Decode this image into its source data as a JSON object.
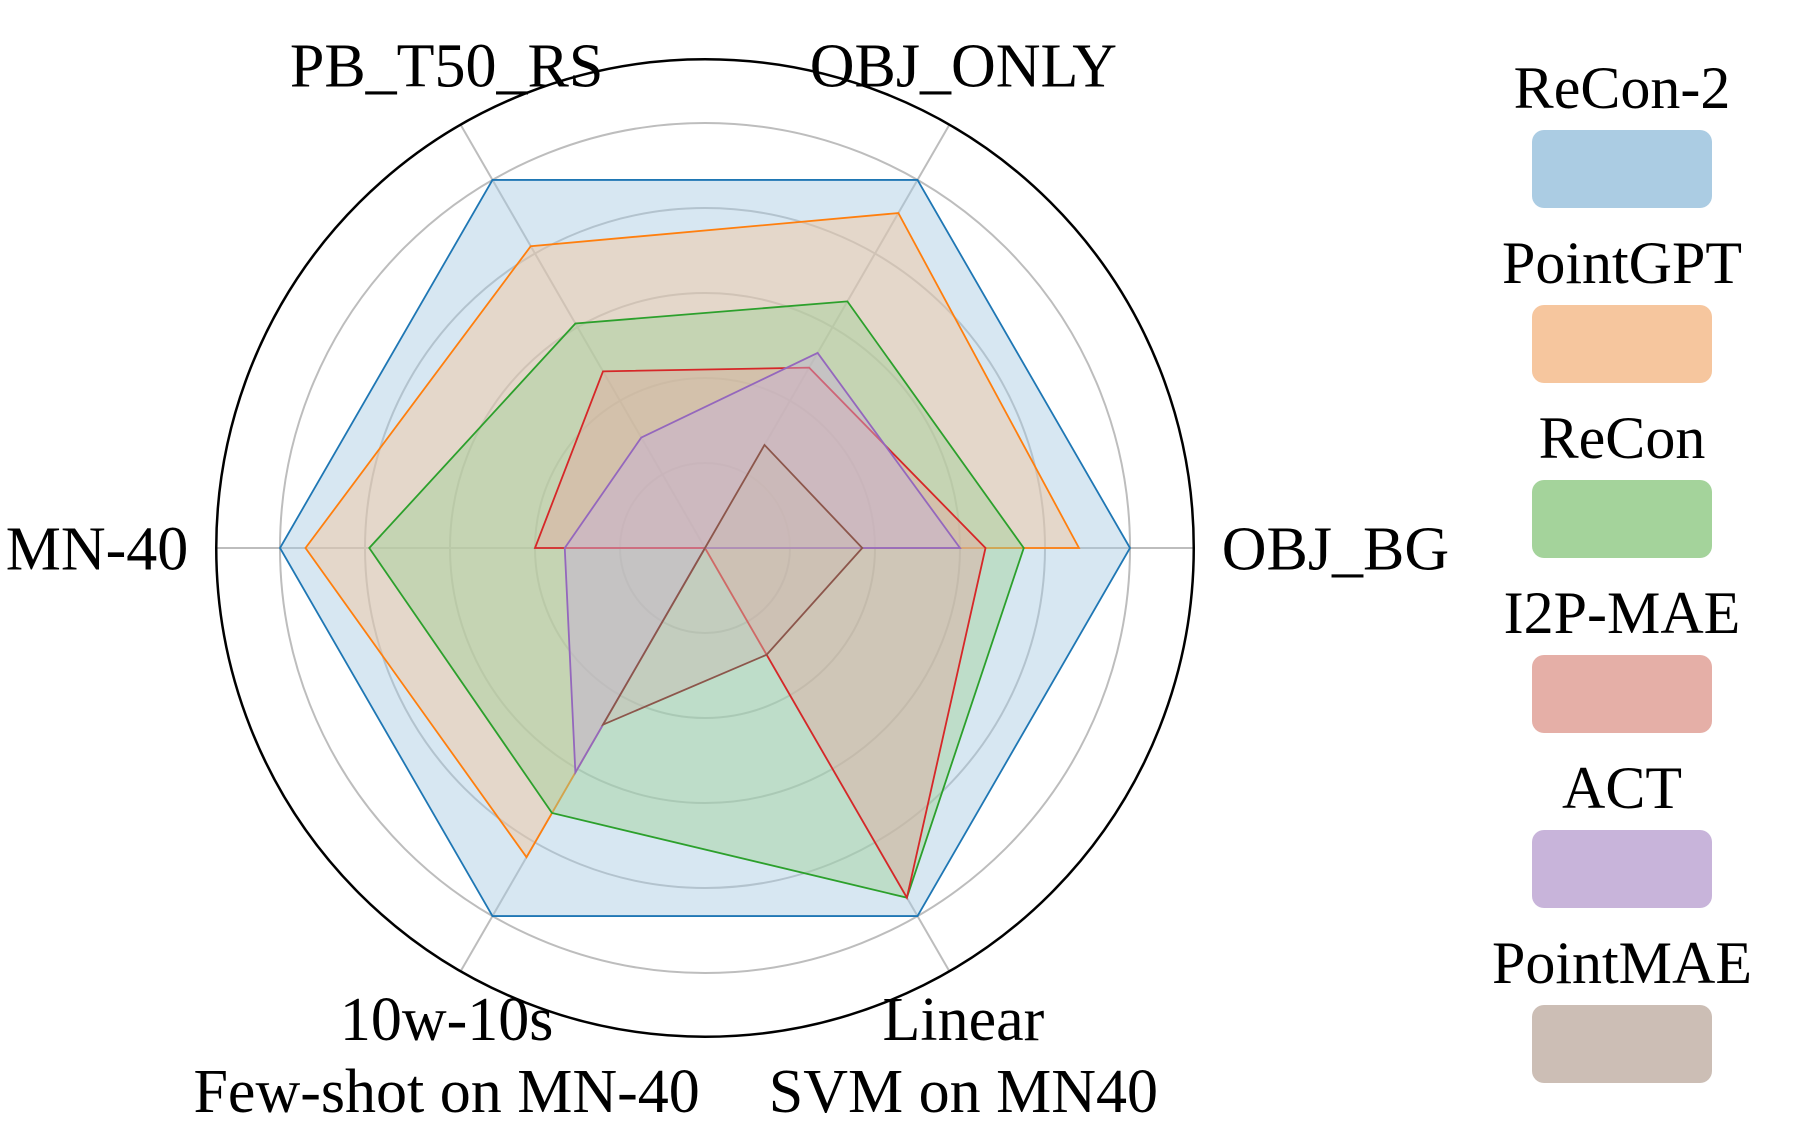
{
  "chart_data": {
    "type": "radar",
    "title": "",
    "axes": [
      {
        "id": "obj_bg",
        "lines": [
          "OBJ_BG"
        ]
      },
      {
        "id": "obj_only",
        "lines": [
          "OBJ_ONLY"
        ]
      },
      {
        "id": "pb_t50_rs",
        "lines": [
          "PB_T50_RS"
        ]
      },
      {
        "id": "mn40",
        "lines": [
          "MN-40"
        ]
      },
      {
        "id": "fewshot",
        "lines": [
          "10w-10s",
          "Few-shot on MN-40"
        ]
      },
      {
        "id": "linear_svm",
        "lines": [
          "Linear",
          "SVM on MN40"
        ]
      }
    ],
    "value_scale": "normalized",
    "rlim": [
      0,
      1.15
    ],
    "grid_rings": [
      0.2,
      0.4,
      0.6,
      0.8,
      1.0
    ],
    "grid": true,
    "legend_position": "right",
    "series": [
      {
        "name": "ReCon-2",
        "color": "#1f77b4",
        "fill": "#a6c9e2",
        "values": [
          1.0,
          1.0,
          1.0,
          1.0,
          1.0,
          1.0
        ]
      },
      {
        "name": "PointGPT",
        "color": "#ff7f0e",
        "fill": "#f5c399",
        "values": [
          0.88,
          0.91,
          0.82,
          0.94,
          0.84,
          0.0
        ]
      },
      {
        "name": "ReCon",
        "color": "#2ca02c",
        "fill": "#9fd196",
        "values": [
          0.75,
          0.67,
          0.61,
          0.79,
          0.72,
          0.95
        ]
      },
      {
        "name": "I2P-MAE",
        "color": "#d62728",
        "fill": "#e4aba2",
        "values": [
          0.66,
          0.49,
          0.48,
          0.4,
          0.0,
          0.95
        ]
      },
      {
        "name": "ACT",
        "color": "#9467bd",
        "fill": "#c5b0d8",
        "values": [
          0.6,
          0.53,
          0.3,
          0.33,
          0.61,
          0.0
        ]
      },
      {
        "name": "PointMAE",
        "color": "#8c564b",
        "fill": "#c9bab1",
        "values": [
          0.37,
          0.28,
          0.0,
          0.0,
          0.48,
          0.29
        ]
      }
    ]
  }
}
